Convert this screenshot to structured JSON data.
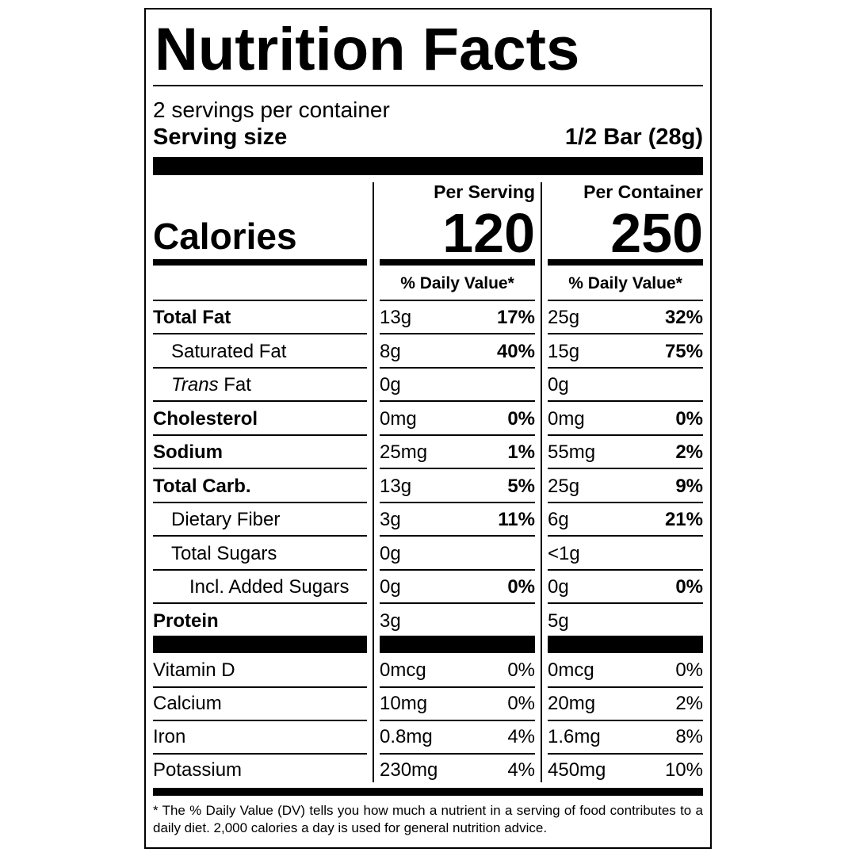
{
  "title": "Nutrition Facts",
  "servings": "2 servings per container",
  "serving_size_label": "Serving size",
  "serving_size": "1/2 Bar (28g)",
  "columns": [
    "Per Serving",
    "Per Container"
  ],
  "calories_label": "Calories",
  "calories": [
    120,
    250
  ],
  "dv_header": "% Daily Value*",
  "nutrients": [
    {
      "name": "Total Fat",
      "bold": true,
      "indent": 0,
      "values": [
        [
          "13g",
          "17%"
        ],
        [
          "25g",
          "32%"
        ]
      ]
    },
    {
      "name": "Saturated Fat",
      "bold": false,
      "indent": 1,
      "values": [
        [
          "8g",
          "40%"
        ],
        [
          "15g",
          "75%"
        ]
      ]
    },
    {
      "name_italic": "Trans",
      "name": "Fat",
      "bold": false,
      "indent": 1,
      "values": [
        [
          "0g"
        ],
        [
          "0g"
        ]
      ]
    },
    {
      "name": "Cholesterol",
      "bold": true,
      "indent": 0,
      "values": [
        [
          "0mg",
          "0%"
        ],
        [
          "0mg",
          "0%"
        ]
      ]
    },
    {
      "name": "Sodium",
      "bold": true,
      "indent": 0,
      "values": [
        [
          "25mg",
          "1%"
        ],
        [
          "55mg",
          "2%"
        ]
      ]
    },
    {
      "name": "Total Carb.",
      "bold": true,
      "indent": 0,
      "values": [
        [
          "13g",
          "5%"
        ],
        [
          "25g",
          "9%"
        ]
      ]
    },
    {
      "name": "Dietary Fiber",
      "bold": false,
      "indent": 1,
      "values": [
        [
          "3g",
          "11%"
        ],
        [
          "6g",
          "21%"
        ]
      ]
    },
    {
      "name": "Total Sugars",
      "bold": false,
      "indent": 1,
      "values": [
        [
          "0g"
        ],
        [
          "<1g"
        ]
      ]
    },
    {
      "name": "Incl. Added Sugars",
      "bold": false,
      "indent": 2,
      "values": [
        [
          "0g",
          "0%"
        ],
        [
          "0g",
          "0%"
        ]
      ]
    },
    {
      "name": "Protein",
      "bold": true,
      "indent": 0,
      "values": [
        [
          "3g"
        ],
        [
          "5g"
        ]
      ]
    }
  ],
  "vitamins": [
    {
      "name": "Vitamin D",
      "values": [
        [
          "0mcg",
          "0%"
        ],
        [
          "0mcg",
          "0%"
        ]
      ]
    },
    {
      "name": "Calcium",
      "values": [
        [
          "10mg",
          "0%"
        ],
        [
          "20mg",
          "2%"
        ]
      ]
    },
    {
      "name": "Iron",
      "values": [
        [
          "0.8mg",
          "4%"
        ],
        [
          "1.6mg",
          "8%"
        ]
      ]
    },
    {
      "name": "Potassium",
      "values": [
        [
          "230mg",
          "4%"
        ],
        [
          "450mg",
          "10%"
        ]
      ]
    }
  ],
  "footnote": "* The % Daily Value (DV) tells you how much a nutrient in a serving of food contributes to a daily diet. 2,000 calories a day is used for general nutrition advice."
}
